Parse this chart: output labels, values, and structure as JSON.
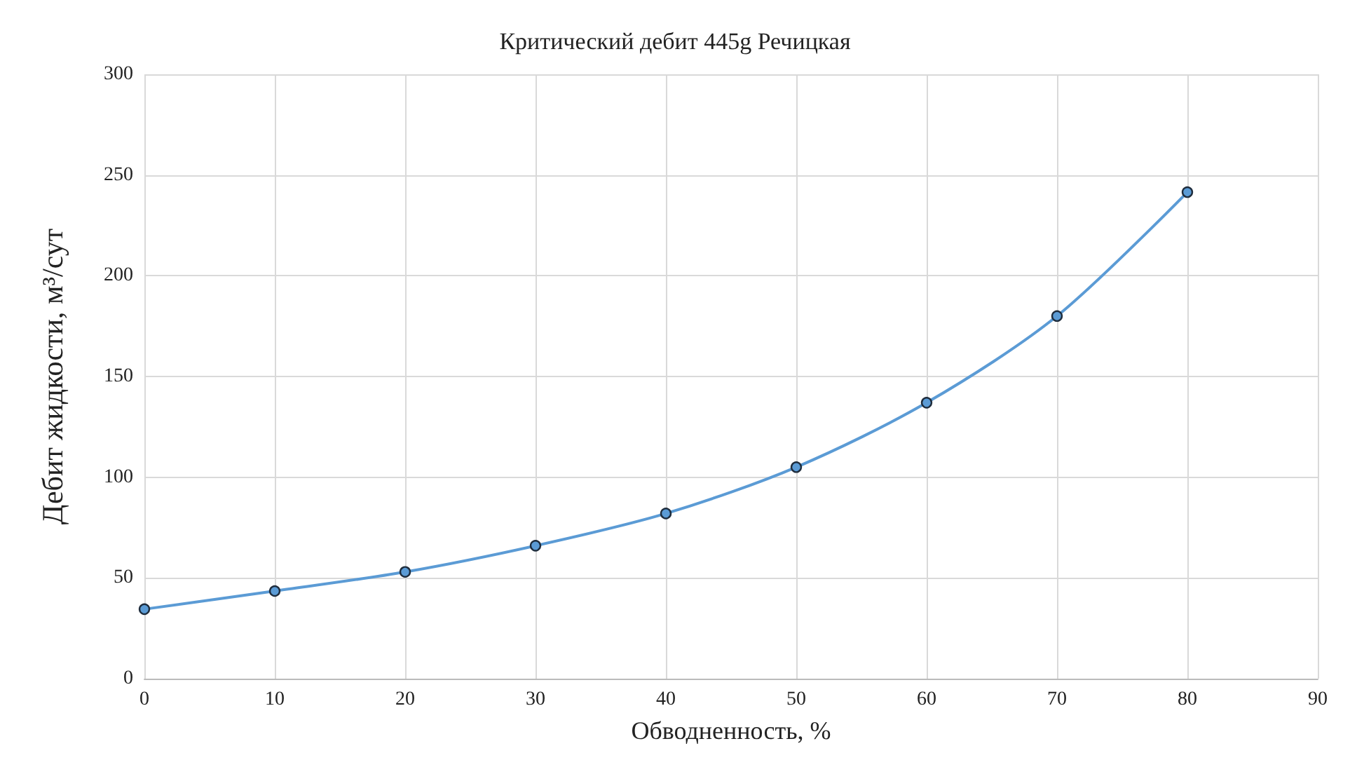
{
  "chart_data": {
    "type": "line",
    "title": "Критический дебит 445g Речицкая",
    "xlabel": "Обводненность, %",
    "ylabel": "Дебит жидкости, м³/сут",
    "x": [
      0,
      10,
      20,
      30,
      40,
      50,
      60,
      70,
      80
    ],
    "series": [
      {
        "color": "#5b9bd5",
        "values": [
          34.5,
          43.5,
          53,
          66,
          82,
          105,
          137,
          180,
          241.5
        ]
      }
    ],
    "xlim": [
      0,
      90
    ],
    "xticks": [
      0,
      10,
      20,
      30,
      40,
      50,
      60,
      70,
      80,
      90
    ],
    "ylim": [
      0,
      300
    ],
    "yticks": [
      0,
      50,
      100,
      150,
      200,
      250,
      300
    ],
    "grid": true,
    "marker": "circle",
    "line_style": "solid"
  }
}
